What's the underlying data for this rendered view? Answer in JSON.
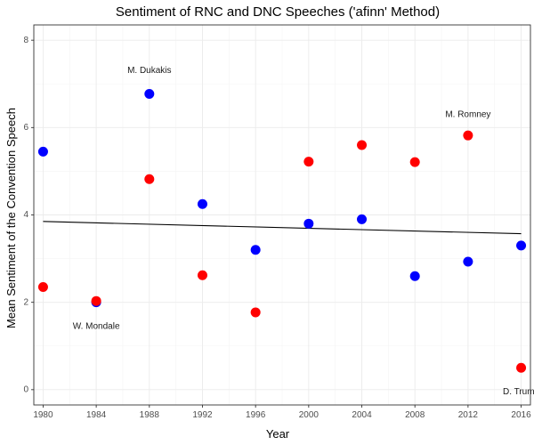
{
  "chart_data": {
    "type": "scatter",
    "title": "Sentiment of RNC and DNC Speeches ('afinn' Method)",
    "xlabel": "Year",
    "ylabel": "Mean Sentiment of the Convention Speech",
    "xlim": [
      1979.3,
      2016.7
    ],
    "ylim": [
      -0.35,
      8.35
    ],
    "x_ticks": [
      1980,
      1984,
      1988,
      1992,
      1996,
      2000,
      2004,
      2008,
      2012,
      2016
    ],
    "y_ticks": [
      0,
      2,
      4,
      6,
      8
    ],
    "grid": true,
    "series": [
      {
        "color": "#0000ff",
        "points": [
          {
            "x": 1980,
            "y": 5.45
          },
          {
            "x": 1984,
            "y": 2.0
          },
          {
            "x": 1988,
            "y": 6.77
          },
          {
            "x": 1992,
            "y": 4.25
          },
          {
            "x": 1996,
            "y": 3.2
          },
          {
            "x": 2000,
            "y": 3.8
          },
          {
            "x": 2004,
            "y": 3.9
          },
          {
            "x": 2008,
            "y": 2.6
          },
          {
            "x": 2012,
            "y": 2.93
          },
          {
            "x": 2016,
            "y": 3.3
          }
        ]
      },
      {
        "color": "#ff0000",
        "points": [
          {
            "x": 1980,
            "y": 2.35
          },
          {
            "x": 1984,
            "y": 2.03
          },
          {
            "x": 1988,
            "y": 4.82
          },
          {
            "x": 1992,
            "y": 2.62
          },
          {
            "x": 1996,
            "y": 1.77
          },
          {
            "x": 2000,
            "y": 5.22
          },
          {
            "x": 2004,
            "y": 5.6
          },
          {
            "x": 2008,
            "y": 5.21
          },
          {
            "x": 2012,
            "y": 5.82
          },
          {
            "x": 2016,
            "y": 0.5
          }
        ]
      }
    ],
    "trend_line": {
      "x": [
        1980,
        2016
      ],
      "y": [
        3.85,
        3.57
      ],
      "color": "#000000"
    },
    "annotations": [
      {
        "text": "M. Dukakis",
        "x": 1988,
        "y": 7.3
      },
      {
        "text": "W. Mondale",
        "x": 1984,
        "y": 1.45
      },
      {
        "text": "M. Romney",
        "x": 2012,
        "y": 6.3
      },
      {
        "text": "D. Trump",
        "x": 2016,
        "y": -0.05
      }
    ]
  }
}
